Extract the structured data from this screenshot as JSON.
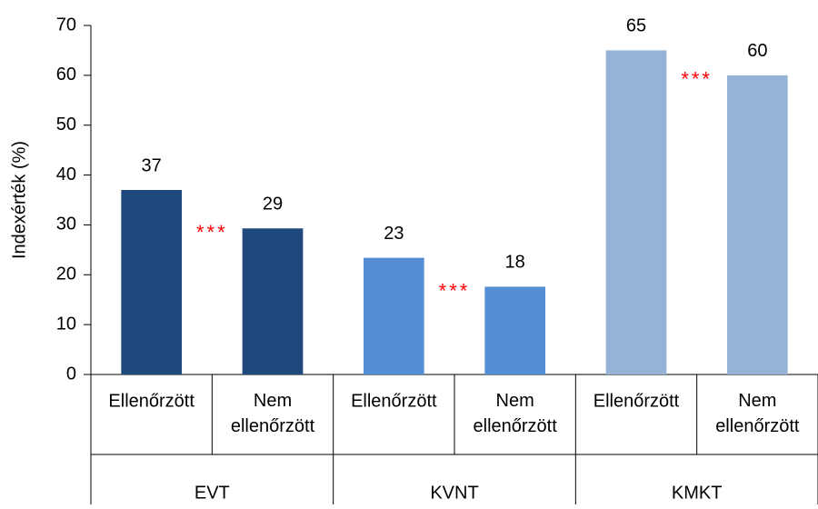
{
  "chart_data": {
    "type": "bar",
    "y_label": "Indexérték (%)",
    "categories": [
      "Ellenőrzött",
      "Nem ellenőrzött",
      "Ellenőrzött",
      "Nem ellenőrzött",
      "Ellenőrzött",
      "Nem ellenőrzött"
    ],
    "groups": [
      "EVT",
      "KVNT",
      "KMKT"
    ],
    "group_colors": [
      "#1f497d",
      "#558ed5",
      "#95b3d7"
    ],
    "values": [
      37,
      29.3,
      23.4,
      17.6,
      65,
      60
    ],
    "value_labels": [
      "37",
      "29",
      "23",
      "18",
      "65",
      "60"
    ],
    "annotations": [
      "***",
      "***",
      "***"
    ],
    "ylim": [
      0,
      70
    ],
    "yticks": [
      0,
      10,
      20,
      30,
      40,
      50,
      60,
      70
    ],
    "grid": false
  }
}
